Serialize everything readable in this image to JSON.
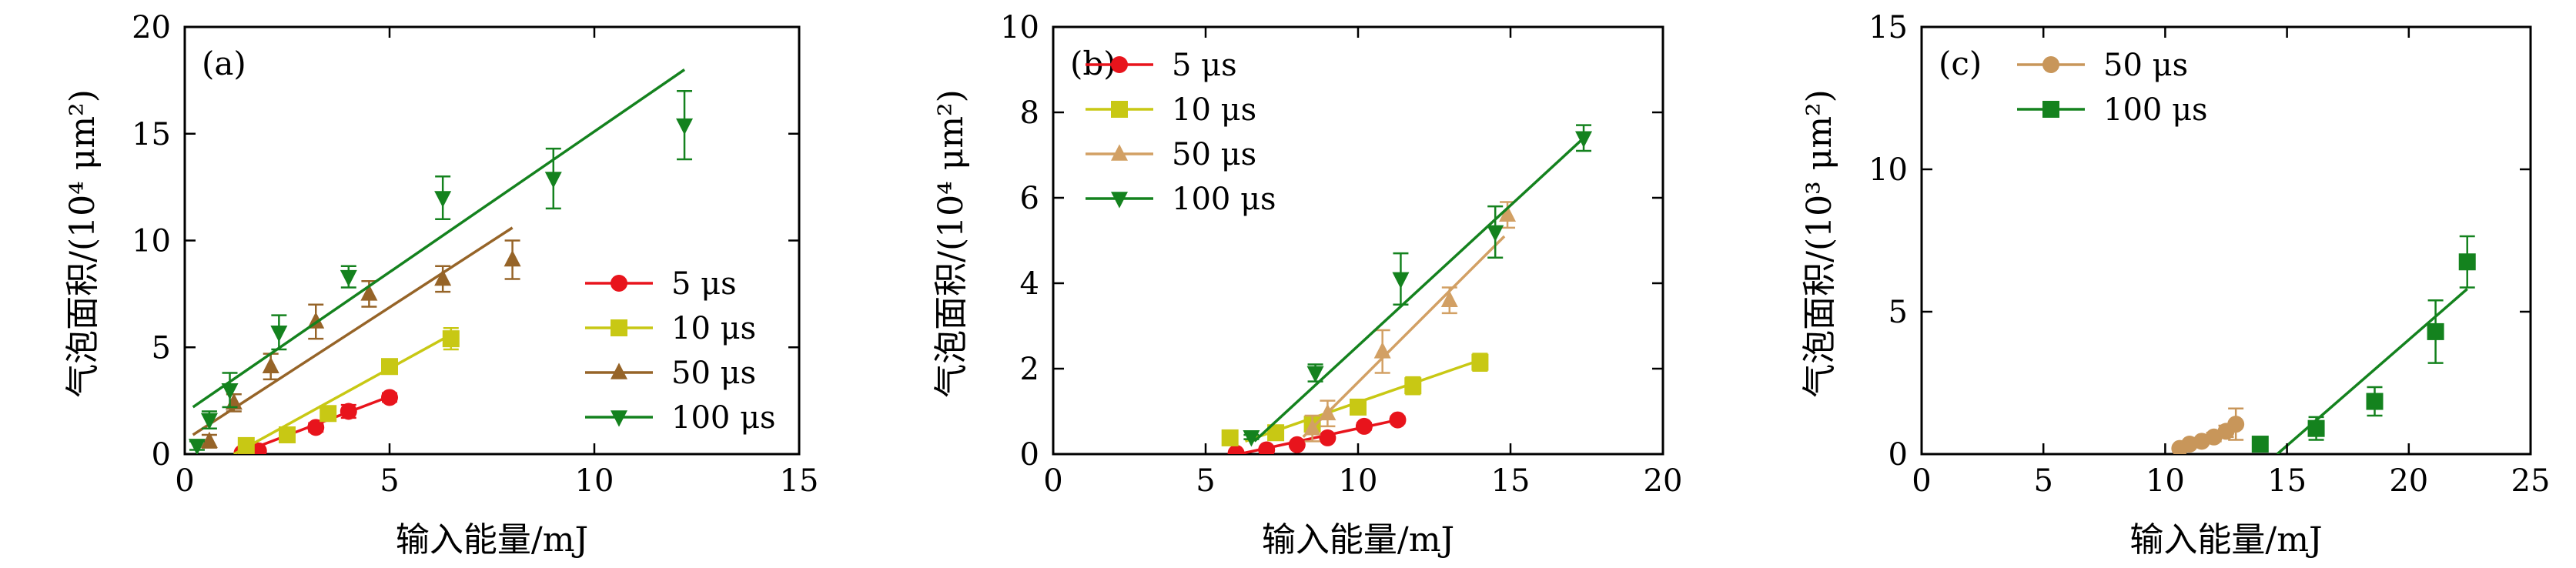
{
  "chart_data": [
    {
      "type": "scatter",
      "panel_label": "(a)",
      "xlabel": "输入能量/mJ",
      "ylabel": "气泡面积/(10⁴ μm²)",
      "xlim": [
        0,
        15
      ],
      "ylim": [
        0,
        20
      ],
      "xticks": [
        0,
        5,
        10,
        15
      ],
      "yticks": [
        0,
        5,
        10,
        15,
        20
      ],
      "grid": false,
      "legend_position": "lower-right",
      "series": [
        {
          "name": "5 μs",
          "marker": "circle",
          "color": "#e8141c",
          "points": [
            [
              1.4,
              0.05
            ],
            [
              1.8,
              0.15
            ],
            [
              3.2,
              1.25
            ],
            [
              4.0,
              2.0
            ],
            [
              5.0,
              2.65
            ]
          ],
          "errors": [
            0.1,
            0.1,
            0.2,
            0.3,
            0.2
          ],
          "fit": [
            [
              1.3,
              0.0
            ],
            [
              5.0,
              2.7
            ]
          ]
        },
        {
          "name": "10 μs",
          "marker": "square",
          "color": "#c8c814",
          "points": [
            [
              1.5,
              0.4
            ],
            [
              2.5,
              0.9
            ],
            [
              3.5,
              1.9
            ],
            [
              5.0,
              4.1
            ],
            [
              6.5,
              5.4
            ]
          ],
          "errors": [
            0.1,
            0.2,
            0.3,
            0.3,
            0.5
          ],
          "fit": [
            [
              1.2,
              0.0
            ],
            [
              6.6,
              5.7
            ]
          ]
        },
        {
          "name": "50 μs",
          "marker": "triangle-up",
          "color": "#966428",
          "points": [
            [
              0.6,
              0.6
            ],
            [
              1.2,
              2.4
            ],
            [
              2.1,
              4.1
            ],
            [
              3.2,
              6.2
            ],
            [
              4.5,
              7.5
            ],
            [
              6.3,
              8.2
            ],
            [
              8.0,
              9.1
            ]
          ],
          "errors": [
            0.3,
            0.4,
            0.6,
            0.8,
            0.6,
            0.6,
            0.9
          ],
          "fit": [
            [
              0.2,
              0.9
            ],
            [
              8.0,
              10.6
            ]
          ]
        },
        {
          "name": "100 μs",
          "marker": "triangle-down",
          "color": "#14821e",
          "points": [
            [
              0.3,
              0.4
            ],
            [
              0.6,
              1.6
            ],
            [
              1.1,
              3.0
            ],
            [
              2.3,
              5.7
            ],
            [
              4.0,
              8.3
            ],
            [
              6.3,
              12.0
            ],
            [
              9.0,
              12.9
            ],
            [
              12.2,
              15.4
            ]
          ],
          "errors": [
            0.2,
            0.4,
            0.8,
            0.8,
            0.5,
            1.0,
            1.4,
            1.6
          ],
          "fit": [
            [
              0.2,
              2.2
            ],
            [
              12.2,
              18.0
            ]
          ]
        }
      ]
    },
    {
      "type": "scatter",
      "panel_label": "(b)",
      "xlabel": "输入能量/mJ",
      "ylabel": "气泡面积/(10⁴ μm²)",
      "xlim": [
        0,
        20
      ],
      "ylim": [
        0,
        10
      ],
      "xticks": [
        0,
        5,
        10,
        15,
        20
      ],
      "yticks": [
        0,
        2,
        4,
        6,
        8,
        10
      ],
      "grid": false,
      "legend_position": "upper-left",
      "series": [
        {
          "name": "5 μs",
          "marker": "circle",
          "color": "#e8141c",
          "points": [
            [
              6.0,
              0.02
            ],
            [
              7.0,
              0.1
            ],
            [
              8.0,
              0.22
            ],
            [
              9.0,
              0.38
            ],
            [
              10.2,
              0.65
            ],
            [
              11.3,
              0.8
            ]
          ],
          "errors": [
            0.05,
            0.05,
            0.05,
            0.05,
            0.08,
            0.08
          ],
          "fit": [
            [
              6.1,
              0.0
            ],
            [
              11.3,
              0.8
            ]
          ]
        },
        {
          "name": "10 μs",
          "marker": "square",
          "color": "#c8c814",
          "points": [
            [
              5.8,
              0.38
            ],
            [
              7.3,
              0.5
            ],
            [
              8.5,
              0.7
            ],
            [
              10.0,
              1.1
            ],
            [
              11.8,
              1.6
            ],
            [
              14.0,
              2.15
            ]
          ],
          "errors": [
            0.05,
            0.1,
            0.1,
            0.1,
            0.2,
            0.2
          ],
          "fit": [
            [
              6.3,
              0.3
            ],
            [
              14.0,
              2.2
            ]
          ]
        },
        {
          "name": "50 μs",
          "marker": "triangle-up",
          "color": "#d2a064",
          "points": [
            [
              8.5,
              0.6
            ],
            [
              9.0,
              0.95
            ],
            [
              10.8,
              2.4
            ],
            [
              13.0,
              3.6
            ],
            [
              14.9,
              5.6
            ]
          ],
          "errors": [
            0.3,
            0.3,
            0.5,
            0.3,
            0.3
          ],
          "fit": [
            [
              8.2,
              0.4
            ],
            [
              14.8,
              5.1
            ]
          ]
        },
        {
          "name": "100 μs",
          "marker": "triangle-down",
          "color": "#14821e",
          "points": [
            [
              6.5,
              0.4
            ],
            [
              8.6,
              1.9
            ],
            [
              11.4,
              4.1
            ],
            [
              14.5,
              5.2
            ],
            [
              17.4,
              7.4
            ]
          ],
          "errors": [
            0.05,
            0.2,
            0.6,
            0.6,
            0.3
          ],
          "fit": [
            [
              6.6,
              0.3
            ],
            [
              17.4,
              7.4
            ]
          ]
        }
      ]
    },
    {
      "type": "scatter",
      "panel_label": "(c)",
      "xlabel": "输入能量/mJ",
      "ylabel": "气泡面积/(10³ μm²)",
      "xlim": [
        0,
        25
      ],
      "ylim": [
        0,
        15
      ],
      "xticks": [
        0,
        5,
        10,
        15,
        20,
        25
      ],
      "yticks": [
        0,
        5,
        10,
        15
      ],
      "grid": false,
      "legend_position": "upper-left",
      "series": [
        {
          "name": "50 μs",
          "marker": "circle",
          "color": "#c8965a",
          "points": [
            [
              10.6,
              0.2
            ],
            [
              11.0,
              0.35
            ],
            [
              11.5,
              0.45
            ],
            [
              12.0,
              0.6
            ],
            [
              12.5,
              0.8
            ],
            [
              12.9,
              1.05
            ]
          ],
          "errors": [
            0.1,
            0.1,
            0.1,
            0.15,
            0.2,
            0.55
          ],
          "fit": [
            [
              10.5,
              0.1
            ],
            [
              12.9,
              1.0
            ]
          ]
        },
        {
          "name": "100 μs",
          "marker": "square",
          "color": "#14821e",
          "points": [
            [
              13.9,
              0.35
            ],
            [
              16.2,
              0.9
            ],
            [
              18.6,
              1.85
            ],
            [
              21.1,
              4.3
            ],
            [
              22.4,
              6.75
            ]
          ],
          "errors": [
            0.1,
            0.4,
            0.5,
            1.1,
            0.9
          ],
          "fit": [
            [
              14.6,
              0.0
            ],
            [
              22.4,
              5.8
            ]
          ]
        }
      ]
    }
  ]
}
